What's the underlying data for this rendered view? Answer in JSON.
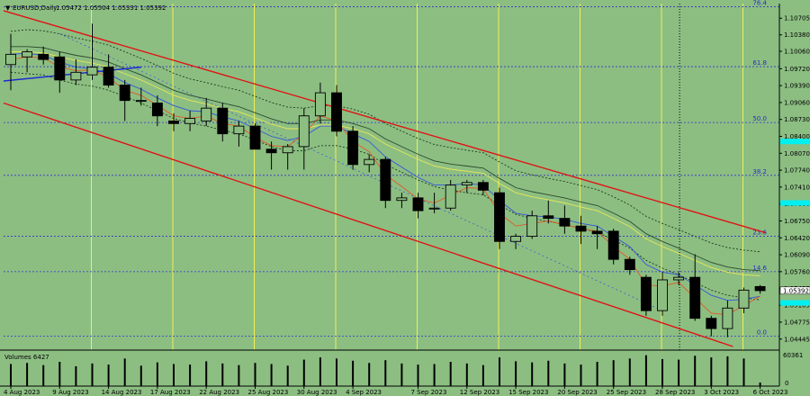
{
  "header": {
    "symbol": "EURUSD,Daily",
    "quote": "1.05472 1.05504 1.05331 1.05392"
  },
  "chart_data": {
    "type": "candlestick",
    "symbol": "EURUSD",
    "timeframe": "Daily",
    "background": "#8cbe82",
    "colors": {
      "bull_body": "#8cbe82",
      "bear_body": "#000000",
      "wick": "#000000",
      "fib_line": "#3333cc",
      "fib_label": "#2a2acc",
      "channel": "#e01414",
      "fast_ma": "#e05a28",
      "mid_ma": "#3355dd",
      "slow_ma": "#e8e855",
      "envelope": "#1f3a1f",
      "vertical_marker": "#f0f050",
      "trend_line": "#1a2ad0"
    },
    "ylim": [
      1.0423,
      1.1099
    ],
    "y_ticks": [
      "1.10705",
      "1.10380",
      "1.10060",
      "1.09720",
      "1.09390",
      "1.09060",
      "1.08730",
      "1.08400",
      "1.08070",
      "1.07740",
      "1.07410",
      "1.07080",
      "1.06750",
      "1.06420",
      "1.06090",
      "1.05760",
      "1.05435",
      "1.05105",
      "1.04775",
      "1.04445"
    ],
    "current_price_label": "1.05392",
    "fib_levels": [
      {
        "label": "76.4",
        "price": 1.1093
      },
      {
        "label": "61.8",
        "price": 1.0976
      },
      {
        "label": "50.0",
        "price": 1.0867
      },
      {
        "label": "38.2",
        "price": 1.0764
      },
      {
        "label": "23.6",
        "price": 1.0645
      },
      {
        "label": "14.6",
        "price": 1.0576
      },
      {
        "label": "0.0",
        "price": 1.045
      }
    ],
    "x_labels": [
      "4 Aug 2023",
      "9 Aug 2023",
      "14 Aug 2023",
      "17 Aug 2023",
      "22 Aug 2023",
      "25 Aug 2023",
      "30 Aug 2023",
      "4 Sep 2023",
      "7 Sep 2023",
      "12 Sep 2023",
      "15 Sep 2023",
      "20 Sep 2023",
      "25 Sep 2023",
      "28 Sep 2023",
      "3 Oct 2023",
      "6 Oct 2023"
    ],
    "candles": [
      {
        "o": 1.098,
        "h": 1.104,
        "l": 1.093,
        "c": 1.1
      },
      {
        "o": 1.0995,
        "h": 1.101,
        "l": 1.0965,
        "c": 1.1005
      },
      {
        "o": 1.1,
        "h": 1.1015,
        "l": 1.098,
        "c": 1.099
      },
      {
        "o": 1.0995,
        "h": 1.1005,
        "l": 1.0925,
        "c": 1.095
      },
      {
        "o": 1.095,
        "h": 1.099,
        "l": 1.094,
        "c": 1.0965
      },
      {
        "o": 1.096,
        "h": 1.106,
        "l": 1.095,
        "c": 1.0975
      },
      {
        "o": 1.0975,
        "h": 1.1,
        "l": 1.0935,
        "c": 1.094
      },
      {
        "o": 1.094,
        "h": 1.095,
        "l": 1.087,
        "c": 1.091
      },
      {
        "o": 1.091,
        "h": 1.0935,
        "l": 1.09,
        "c": 1.091
      },
      {
        "o": 1.0905,
        "h": 1.092,
        "l": 1.086,
        "c": 1.088
      },
      {
        "o": 1.087,
        "h": 1.0885,
        "l": 1.085,
        "c": 1.0865
      },
      {
        "o": 1.0865,
        "h": 1.089,
        "l": 1.085,
        "c": 1.0875
      },
      {
        "o": 1.087,
        "h": 1.0915,
        "l": 1.086,
        "c": 1.0895
      },
      {
        "o": 1.0895,
        "h": 1.0905,
        "l": 1.083,
        "c": 1.0845
      },
      {
        "o": 1.0845,
        "h": 1.087,
        "l": 1.082,
        "c": 1.086
      },
      {
        "o": 1.086,
        "h": 1.0865,
        "l": 1.0815,
        "c": 1.0815
      },
      {
        "o": 1.0815,
        "h": 1.083,
        "l": 1.0775,
        "c": 1.0808
      },
      {
        "o": 1.0808,
        "h": 1.0825,
        "l": 1.0775,
        "c": 1.082
      },
      {
        "o": 1.082,
        "h": 1.0895,
        "l": 1.0775,
        "c": 1.088
      },
      {
        "o": 1.088,
        "h": 1.0945,
        "l": 1.0865,
        "c": 1.0925
      },
      {
        "o": 1.0925,
        "h": 1.094,
        "l": 1.084,
        "c": 1.085
      },
      {
        "o": 1.085,
        "h": 1.086,
        "l": 1.0775,
        "c": 1.0785
      },
      {
        "o": 1.0785,
        "h": 1.0805,
        "l": 1.077,
        "c": 1.0795
      },
      {
        "o": 1.0795,
        "h": 1.08,
        "l": 1.07,
        "c": 1.0715
      },
      {
        "o": 1.0715,
        "h": 1.073,
        "l": 1.07,
        "c": 1.072
      },
      {
        "o": 1.072,
        "h": 1.073,
        "l": 1.068,
        "c": 1.0695
      },
      {
        "o": 1.07,
        "h": 1.073,
        "l": 1.069,
        "c": 1.07
      },
      {
        "o": 1.07,
        "h": 1.0755,
        "l": 1.0695,
        "c": 1.0745
      },
      {
        "o": 1.0745,
        "h": 1.0755,
        "l": 1.073,
        "c": 1.075
      },
      {
        "o": 1.075,
        "h": 1.0755,
        "l": 1.0725,
        "c": 1.0735
      },
      {
        "o": 1.073,
        "h": 1.074,
        "l": 1.062,
        "c": 1.0635
      },
      {
        "o": 1.0635,
        "h": 1.065,
        "l": 1.062,
        "c": 1.0645
      },
      {
        "o": 1.0645,
        "h": 1.0695,
        "l": 1.064,
        "c": 1.0685
      },
      {
        "o": 1.0685,
        "h": 1.0715,
        "l": 1.067,
        "c": 1.068
      },
      {
        "o": 1.068,
        "h": 1.0705,
        "l": 1.065,
        "c": 1.0665
      },
      {
        "o": 1.0665,
        "h": 1.0685,
        "l": 1.063,
        "c": 1.0655
      },
      {
        "o": 1.0655,
        "h": 1.0665,
        "l": 1.062,
        "c": 1.065
      },
      {
        "o": 1.0655,
        "h": 1.066,
        "l": 1.059,
        "c": 1.06
      },
      {
        "o": 1.06,
        "h": 1.0605,
        "l": 1.057,
        "c": 1.058
      },
      {
        "o": 1.0565,
        "h": 1.057,
        "l": 1.049,
        "c": 1.05
      },
      {
        "o": 1.05,
        "h": 1.0575,
        "l": 1.049,
        "c": 1.056
      },
      {
        "o": 1.056,
        "h": 1.0575,
        "l": 1.055,
        "c": 1.0565
      },
      {
        "o": 1.0565,
        "h": 1.061,
        "l": 1.048,
        "c": 1.0485
      },
      {
        "o": 1.0485,
        "h": 1.049,
        "l": 1.045,
        "c": 1.0465
      },
      {
        "o": 1.0465,
        "h": 1.052,
        "l": 1.0448,
        "c": 1.0505
      },
      {
        "o": 1.0505,
        "h": 1.0545,
        "l": 1.0495,
        "c": 1.054
      },
      {
        "o": 1.0547,
        "h": 1.055,
        "l": 1.0533,
        "c": 1.0539
      }
    ],
    "ma_fast": [
      1.099,
      1.0995,
      1.0993,
      1.0975,
      1.0968,
      1.097,
      1.0955,
      1.093,
      1.092,
      1.09,
      1.088,
      1.0875,
      1.088,
      1.0865,
      1.086,
      1.0838,
      1.0822,
      1.082,
      1.0845,
      1.088,
      1.087,
      1.083,
      1.081,
      1.0765,
      1.0742,
      1.0718,
      1.071,
      1.0725,
      1.074,
      1.0738,
      1.069,
      1.0665,
      1.067,
      1.0675,
      1.0668,
      1.066,
      1.0655,
      1.0625,
      1.06,
      1.055,
      1.0548,
      1.0555,
      1.0525,
      1.0495,
      1.0492,
      1.051,
      1.0528
    ],
    "ma_mid": [
      1.1,
      1.1002,
      1.0998,
      1.0985,
      1.0975,
      1.0972,
      1.0962,
      1.0945,
      1.0932,
      1.0915,
      1.09,
      1.089,
      1.0888,
      1.0878,
      1.087,
      1.0855,
      1.084,
      1.0832,
      1.084,
      1.086,
      1.086,
      1.0845,
      1.083,
      1.08,
      1.078,
      1.076,
      1.0745,
      1.0745,
      1.0748,
      1.0745,
      1.0715,
      1.069,
      1.0685,
      1.0683,
      1.0678,
      1.067,
      1.0665,
      1.0645,
      1.0625,
      1.059,
      1.0575,
      1.057,
      1.055,
      1.053,
      1.052,
      1.0522,
      1.0528
    ],
    "ma_slow": [
      1.1005,
      1.1005,
      1.1003,
      1.0995,
      1.0988,
      1.0983,
      1.0975,
      1.0962,
      1.095,
      1.0935,
      1.092,
      1.091,
      1.0903,
      1.0895,
      1.0888,
      1.0876,
      1.0864,
      1.0855,
      1.0855,
      1.0862,
      1.0862,
      1.0855,
      1.0845,
      1.0825,
      1.081,
      1.0795,
      1.0782,
      1.0776,
      1.0772,
      1.0768,
      1.0748,
      1.073,
      1.0722,
      1.0716,
      1.071,
      1.0702,
      1.0695,
      1.068,
      1.0664,
      1.064,
      1.0625,
      1.0612,
      1.0598,
      1.0584,
      1.0575,
      1.057,
      1.0568
    ],
    "envelope_upper": [
      1.1045,
      1.1048,
      1.1046,
      1.104,
      1.1032,
      1.1026,
      1.1018,
      1.1005,
      1.0992,
      1.0978,
      1.0963,
      1.0952,
      1.0945,
      1.0937,
      1.093,
      1.0918,
      1.0906,
      1.0897,
      1.0895,
      1.09,
      1.09,
      1.0893,
      1.0883,
      1.0865,
      1.085,
      1.0836,
      1.0824,
      1.0818,
      1.0813,
      1.0808,
      1.079,
      1.0773,
      1.0765,
      1.0758,
      1.0752,
      1.0744,
      1.0736,
      1.0722,
      1.0706,
      1.0684,
      1.067,
      1.0658,
      1.0645,
      1.0632,
      1.0623,
      1.0618,
      1.0615
    ],
    "envelope_lower": [
      1.0965,
      1.0962,
      1.096,
      1.095,
      1.0942,
      1.0938,
      1.093,
      1.0918,
      1.0905,
      1.089,
      1.0875,
      1.0866,
      1.086,
      1.0852,
      1.0845,
      1.0833,
      1.082,
      1.0812,
      1.0812,
      1.0822,
      1.0822,
      1.0815,
      1.0805,
      1.0785,
      1.077,
      1.0755,
      1.0742,
      1.0735,
      1.073,
      1.0726,
      1.0706,
      1.0688,
      1.068,
      1.0674,
      1.0668,
      1.066,
      1.0653,
      1.0638,
      1.0622,
      1.0598,
      1.0583,
      1.057,
      1.0555,
      1.054,
      1.053,
      1.0525,
      1.0521
    ],
    "volume_label": "Volumes 6427",
    "volume_max_label": "60361",
    "volume_zero_label": "0",
    "volume_max": 60361,
    "volumes": [
      40000,
      42000,
      38000,
      44000,
      36000,
      41000,
      39000,
      50000,
      37000,
      43000,
      40000,
      39000,
      45000,
      41000,
      38000,
      42000,
      40000,
      37000,
      48000,
      52000,
      50000,
      46000,
      42000,
      47000,
      41000,
      39000,
      40000,
      44000,
      41000,
      38000,
      52000,
      45000,
      43000,
      46000,
      41000,
      39000,
      44000,
      47000,
      50000,
      56000,
      49000,
      48000,
      55000,
      52000,
      54000,
      50000,
      6427
    ]
  }
}
